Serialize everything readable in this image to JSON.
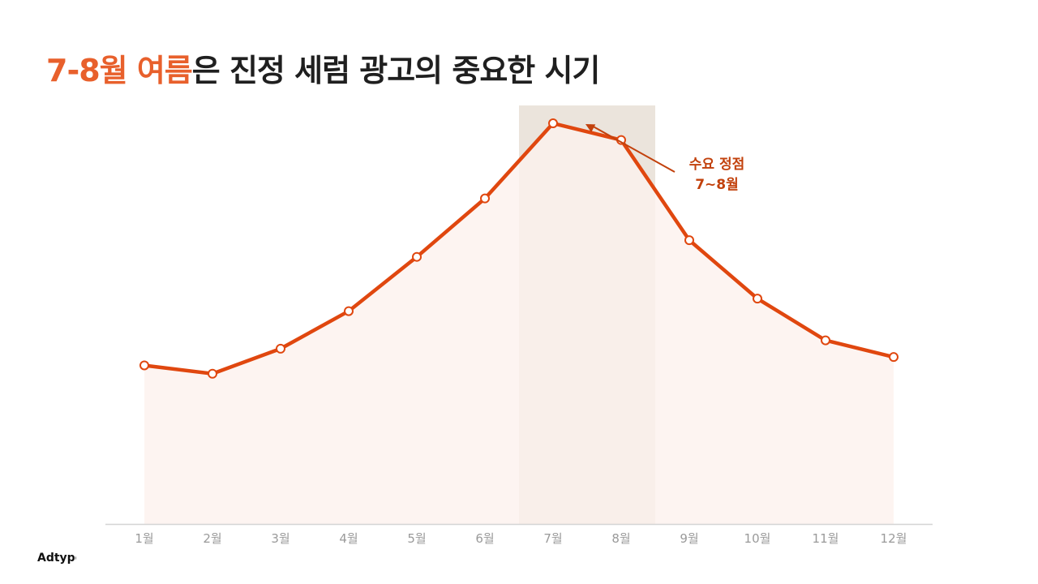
{
  "title": {
    "highlight": "7-8월 여름",
    "rest": "은 진정 세럼 광고의 중요한 시기"
  },
  "brand": "Adtype",
  "colors": {
    "accent": "#e8602c",
    "line": "#e0470f",
    "fill": "#fdf1ee",
    "highlight_band": "#e7dfd6",
    "annotation": "#c2410c"
  },
  "chart_data": {
    "type": "area",
    "categories": [
      "1월",
      "2월",
      "3월",
      "4월",
      "5월",
      "6월",
      "7월",
      "8월",
      "9월",
      "10월",
      "11월",
      "12월"
    ],
    "values": [
      38,
      36,
      42,
      51,
      64,
      78,
      96,
      92,
      68,
      54,
      44,
      40
    ],
    "ylim": [
      0,
      110
    ],
    "highlight_range": [
      "7월",
      "8월"
    ],
    "annotation": {
      "line1": "수요 정점",
      "line2": "7~8월",
      "target": "7월"
    },
    "grid": false,
    "legend": "none"
  }
}
